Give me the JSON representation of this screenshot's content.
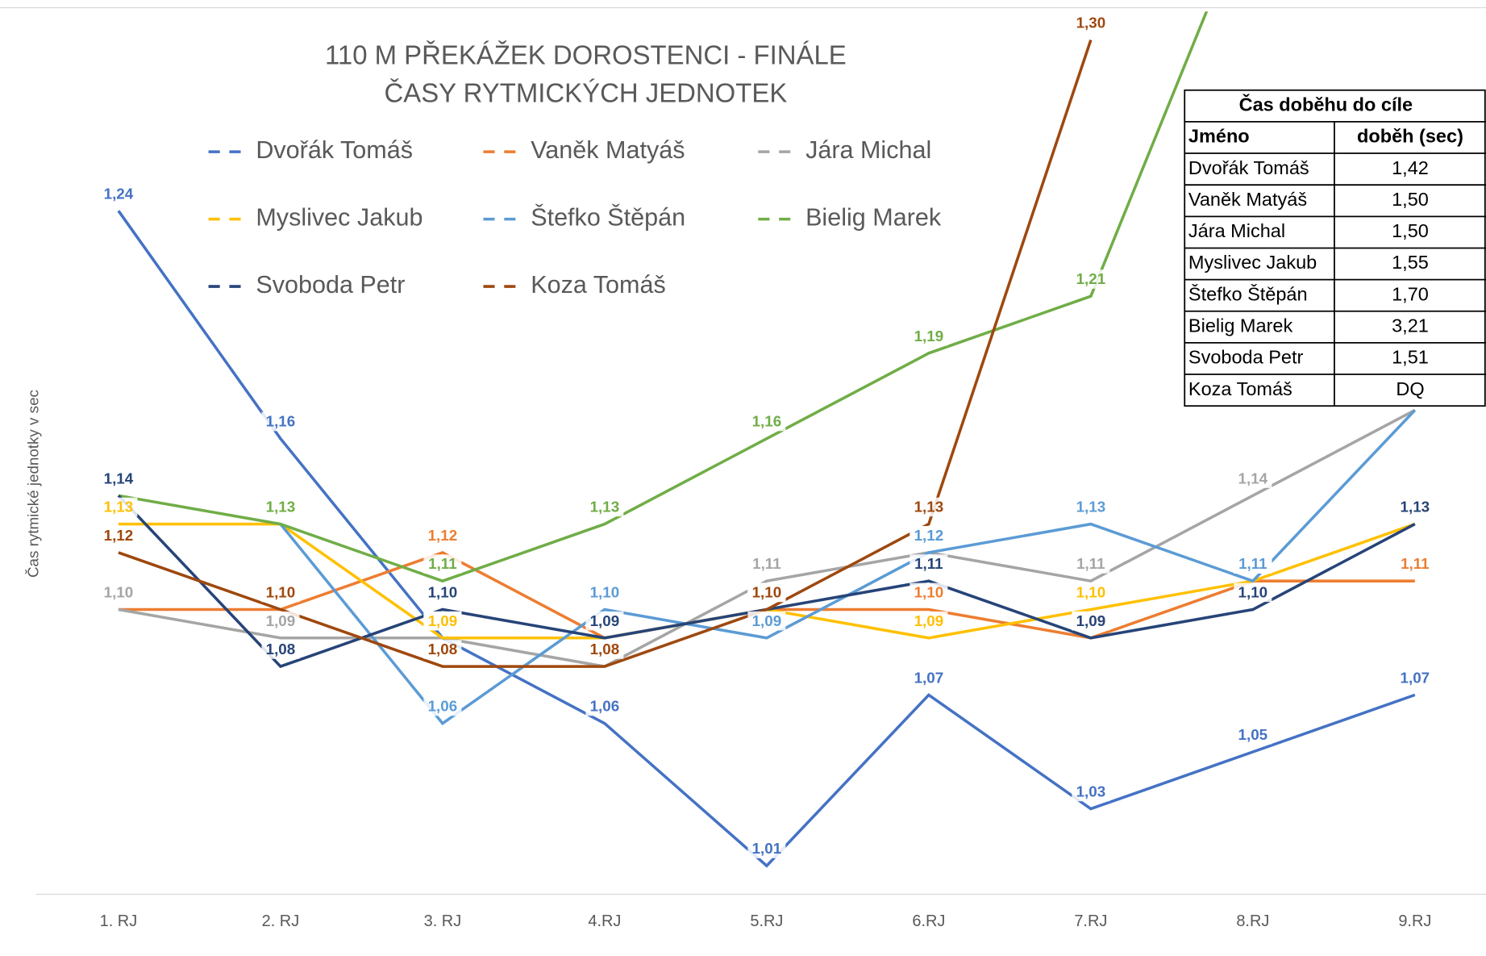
{
  "chart_data": {
    "type": "line",
    "title": [
      "110 M PŘEKÁŽEK DOROSTENCI - FINÁLE",
      "ČASY RYTMICKÝCH JEDNOTEK"
    ],
    "y_label": "Čas rytmické jednotky v sec",
    "categories": [
      "1. RJ",
      "2. RJ",
      "3. RJ",
      "4.RJ",
      "5.RJ",
      "6.RJ",
      "7.RJ",
      "8.RJ",
      "9.RJ"
    ],
    "ylim": [
      1.0,
      1.31
    ],
    "series": [
      {
        "name": "Dvořák Tomáš",
        "color": "#4472c4",
        "values": [
          1.24,
          1.16,
          1.09,
          1.06,
          1.01,
          1.07,
          1.03,
          1.05,
          1.07
        ],
        "value_labels": [
          "1,24",
          "1,16",
          null,
          "1,06",
          "1,01",
          "1,07",
          "1,03",
          "1,05",
          "1,07"
        ]
      },
      {
        "name": "Vaněk Matyáš",
        "color": "#ed7d31",
        "values": [
          1.1,
          1.1,
          1.12,
          1.09,
          1.1,
          1.1,
          1.09,
          1.11,
          1.11
        ],
        "value_labels": [
          "1,10",
          "1,10",
          "1,12",
          null,
          "1,10",
          "1,10",
          "1,09",
          "1,11",
          "1,11"
        ]
      },
      {
        "name": "Jára Michal",
        "color": "#a5a5a5",
        "values": [
          1.1,
          1.09,
          1.09,
          1.08,
          1.11,
          1.12,
          1.11,
          1.14,
          1.17
        ],
        "value_labels": [
          "1,10",
          "1,09",
          "1,09",
          null,
          "1,11",
          "1,12",
          "1,11",
          "1,14",
          null
        ]
      },
      {
        "name": "Myslivec Jakub",
        "color": "#ffc000",
        "values": [
          1.13,
          1.13,
          1.09,
          1.09,
          1.1,
          1.09,
          1.1,
          1.11,
          1.13
        ],
        "value_labels": [
          "1,13",
          "1,13",
          "1,09",
          null,
          "1,10",
          "1,09",
          "1,10",
          "1,11",
          "1,13"
        ]
      },
      {
        "name": "Štefko Štěpán",
        "color": "#5b9bd5",
        "values": [
          null,
          1.13,
          1.06,
          1.1,
          1.09,
          1.12,
          1.13,
          1.11,
          1.17
        ],
        "value_labels": [
          null,
          null,
          "1,06",
          "1,10",
          "1,09",
          "1,12",
          "1,13",
          "1,11",
          "1,17"
        ]
      },
      {
        "name": "Bielig Marek",
        "color": "#70ad47",
        "values": [
          1.14,
          1.13,
          1.11,
          1.13,
          1.16,
          1.19,
          1.21,
          1.35,
          null
        ],
        "value_labels": [
          null,
          "1,13",
          "1,11",
          "1,13",
          "1,16",
          "1,19",
          "1,21",
          null,
          null
        ]
      },
      {
        "name": "Svoboda Petr",
        "color": "#264478",
        "values": [
          1.14,
          1.08,
          1.1,
          1.09,
          1.1,
          1.11,
          1.09,
          1.1,
          1.13
        ],
        "value_labels": [
          "1,14",
          "1,08",
          "1,10",
          "1,09",
          "1,10",
          "1,11",
          "1,09",
          "1,10",
          "1,13"
        ]
      },
      {
        "name": "Koza Tomáš",
        "color": "#9e480e",
        "values": [
          1.12,
          1.1,
          1.08,
          1.08,
          1.1,
          1.13,
          1.3,
          null,
          null
        ],
        "value_labels": [
          "1,12",
          "1,10",
          "1,08",
          "1,08",
          "1,10",
          "1,13",
          "1,30",
          null,
          null
        ]
      }
    ]
  },
  "table": {
    "title": "Čas doběhu do cíle",
    "header": [
      "Jméno",
      "doběh (sec)"
    ],
    "rows": [
      [
        "Dvořák Tomáš",
        "1,42"
      ],
      [
        "Vaněk Matyáš",
        "1,50"
      ],
      [
        "Jára Michal",
        "1,50"
      ],
      [
        "Myslivec Jakub",
        "1,55"
      ],
      [
        "Štefko Štěpán",
        "1,70"
      ],
      [
        "Bielig Marek",
        "3,21"
      ],
      [
        "Svoboda Petr",
        "1,51"
      ],
      [
        "Koza Tomáš",
        "DQ"
      ]
    ]
  }
}
